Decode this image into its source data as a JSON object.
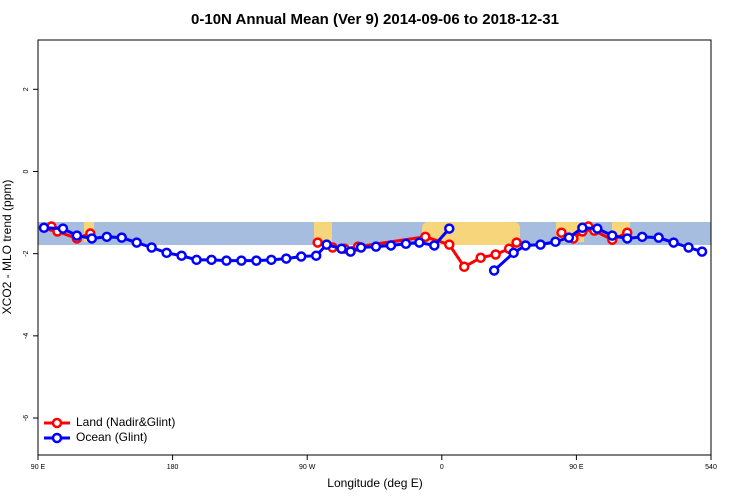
{
  "chart_data": {
    "type": "line",
    "title": "0-10N Annual Mean (Ver 9)   2014-09-06 to 2018-12-31",
    "xlabel": "Longitude (deg E)",
    "ylabel": "XCO2 - MLO trend (ppm)",
    "xlim": [
      90,
      540
    ],
    "xticks": [
      {
        "value": 90,
        "label": "90 E"
      },
      180,
      {
        "value": 270,
        "label": "90 W"
      },
      {
        "value": 360,
        "label": "0"
      },
      {
        "value": 450,
        "label": "90 E"
      },
      540
    ],
    "ylim": [
      -6.9,
      3.2
    ],
    "yticks": [
      2,
      0,
      -2,
      -4,
      -6
    ],
    "legend": "bottom-left",
    "series": [
      {
        "name": "Land (Nadir&Glint)",
        "color": "#ff0000",
        "x": [
          99,
          103,
          116,
          125,
          null,
          277,
          287,
          295,
          304,
          349,
          365,
          375,
          386,
          396,
          405,
          410,
          null,
          440,
          448,
          454,
          458,
          462,
          474,
          484
        ],
        "values": [
          -1.34,
          -1.46,
          -1.63,
          -1.51,
          null,
          -1.73,
          -1.85,
          -1.88,
          -1.83,
          -1.59,
          -1.78,
          -2.32,
          -2.1,
          -2.02,
          -1.88,
          -1.73,
          null,
          -1.49,
          -1.63,
          -1.46,
          -1.34,
          -1.44,
          -1.66,
          -1.49
        ]
      },
      {
        "name": "Ocean (Glint)",
        "color": "#0000ff",
        "x": [
          94,
          106.7,
          116,
          126,
          136,
          146,
          156,
          166,
          176,
          186,
          196,
          206,
          216,
          226,
          236,
          246,
          256,
          266,
          276,
          283,
          293,
          299,
          306,
          316,
          326,
          336,
          345,
          355,
          365,
          null,
          395,
          408,
          416,
          426,
          436,
          445,
          454,
          464,
          474,
          484,
          494,
          505,
          515,
          525,
          534
        ],
        "values": [
          -1.37,
          -1.39,
          -1.56,
          -1.63,
          -1.59,
          -1.61,
          -1.73,
          -1.85,
          -1.98,
          -2.05,
          -2.15,
          -2.15,
          -2.17,
          -2.17,
          -2.17,
          -2.15,
          -2.12,
          -2.07,
          -2.05,
          -1.78,
          -1.88,
          -1.95,
          -1.85,
          -1.83,
          -1.8,
          -1.76,
          -1.73,
          -1.8,
          -1.39,
          null,
          -2.41,
          -1.98,
          -1.8,
          -1.78,
          -1.71,
          -1.61,
          -1.37,
          -1.39,
          -1.56,
          -1.63,
          -1.59,
          -1.61,
          -1.73,
          -1.85,
          -1.95
        ]
      }
    ]
  }
}
